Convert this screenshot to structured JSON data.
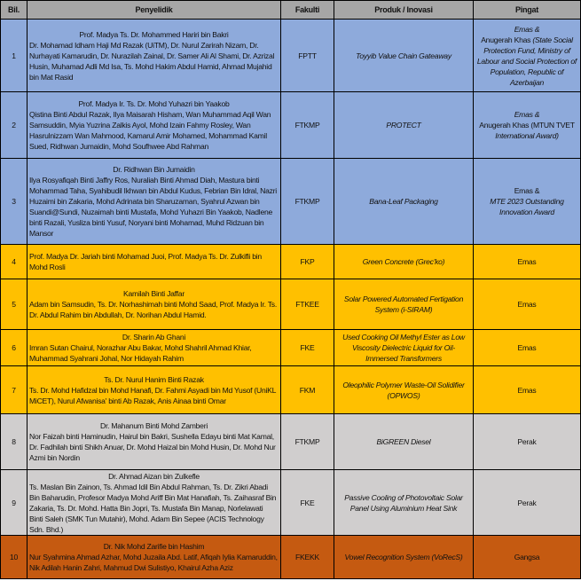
{
  "headers": [
    "Bil.",
    "Penyelidik",
    "Fakulti",
    "Produk / Inovasi",
    "Pingat"
  ],
  "colors": {
    "header": "#a6a6a6",
    "blue": "#8eaadb",
    "yellow": "#ffc000",
    "gray": "#d0cece",
    "orange": "#c55a11"
  },
  "rows": [
    {
      "no": "1",
      "color": "blue",
      "lead": "Prof. Madya Ts. Dr. Mohammed Hariri bin Bakri",
      "members": "Dr. Mohamad Idham Haji Md Razak (UiTM), Dr. Nurul Zarirah Nizam, Dr. Nurhayati Kamarudin, Dr. Nurazilah Zainal, Dr. Samer Ali Al Shami, Dr. Azrizal Husin, Muhamad Adli Md Isa, Ts. Mohd Hakim Abdul Hamid, Ahmad Mujahid bin Mat Rasid",
      "faculty": "FPTT",
      "product": "Toyyib Value Chain Gateaway",
      "award": [
        {
          "t": "Emas &",
          "i": true,
          "br": true
        },
        {
          "t": "Anugerah Khas ",
          "i": false
        },
        {
          "t": "(State Social Protection Fund, Ministry of Labour and Social Protection of Population, Republic of Azerbaijan",
          "i": true
        }
      ]
    },
    {
      "no": "2",
      "color": "blue",
      "lead": "Prof. Madya Ir. Ts. Dr. Mohd Yuhazri bin Yaakob",
      "members": "Qistina Binti Abdul Razak, Ilya Maisarah Hisham, Wan Muhammad Aqil Wan Samsuddin, Myia Yuzrina Zalkis Ayol, Mohd Izain Fahmy Rosley, Wan Hasrulnizzam Wan Mahmood, Kamarul Amir Mohamed, Mohammad Kamil Sued, Ridhwan Jumaidin, Mohd Soufhwee Abd Rahman",
      "faculty": "FTKMP",
      "product": "PROTECT",
      "award": [
        {
          "t": "Emas &",
          "i": true,
          "br": true
        },
        {
          "t": "Anugerah Khas (MTUN TVET ",
          "i": false
        },
        {
          "t": "International Award)",
          "i": true
        }
      ]
    },
    {
      "no": "3",
      "color": "blue",
      "lead": "Dr. Ridhwan Bin Jumaidin",
      "members": "Ilya Rosyafiqah Binti Jaffry Ros, Nuraliah Binti Ahmad Diah, Mastura binti Mohammad Taha, Syahibudil Ikhwan bin Abdul Kudus, Febrian Bin Idral, Nazri Huzaimi bin Zakaria, Mohd Adrinata bin Sharuzaman, Syahrul Azwan bin Suandi@Sundi, Nuzaimah binti Mustafa, Mohd Yuhazri Bin Yaakob, Nadlene binti Razali, Yusliza binti Yusuf, Noryani binti Mohamad, Muhd Ridzuan bin Mansor",
      "faculty": "FTKMP",
      "product": "Bana-Leaf Packaging",
      "award": [
        {
          "t": "Emas &",
          "i": false,
          "br": true
        },
        {
          "t": "MTE 2023 Outstanding Innovation Award",
          "i": true
        }
      ]
    },
    {
      "no": "4",
      "color": "yellow",
      "lead": "",
      "members": "Prof. Madya Dr. Jariah binti Mohamad Juoi, Prof. Madya Ts. Dr. Zulkifli bin Mohd Rosli",
      "faculty": "FKP",
      "product": "Green Concrete (Grec'ko)",
      "award": [
        {
          "t": "Emas",
          "i": false
        }
      ]
    },
    {
      "no": "5",
      "color": "yellow",
      "lead": "Kamilah Binti Jaffar",
      "members": "Adam bin Samsudin, Ts. Dr. Norhashimah binti Mohd Saad, Prof. Madya Ir. Ts. Dr. Abdul Rahim bin Abdullah, Dr. Norihan Abdul Hamid.",
      "faculty": "FTKEE",
      "product": "Solar Powered Automated Fertigation System (i-SIRAM)",
      "award": [
        {
          "t": "Emas",
          "i": false
        }
      ]
    },
    {
      "no": "6",
      "color": "yellow",
      "lead": "Dr. Sharin Ab Ghani",
      "members": "Imran Sutan Chairul, Norazhar Abu Bakar, Mohd Shahril Ahmad Khiar, Muhammad Syahrani Johal, Nor Hidayah Rahim",
      "faculty": "FKE",
      "product": "Used Cooking Oil Methyl Ester as Low Viscosity Dielectric Liquid for Oil-Immersed Transformers",
      "award": [
        {
          "t": "Emas",
          "i": false
        }
      ]
    },
    {
      "no": "7",
      "color": "yellow",
      "lead": "Ts. Dr. Nurul Hanim Binti Razak",
      "members": "Ts. Dr. Mohd Hafidzal bin Mohd Hanafi, Dr. Fahmi Asyadi bin Md Yusof (UniKL MiCET), Nurul Afwanisa' binti Ab Razak, Anis Ainaa binti Omar",
      "faculty": "FKM",
      "product": "Oleophilic Polymer Waste-Oil Solidifier (OPWOS)",
      "award": [
        {
          "t": "Emas",
          "i": false
        }
      ]
    },
    {
      "no": "8",
      "color": "gray",
      "lead": "Dr. Mahanum Binti Mohd Zamberi",
      "members": "Nor Faizah binti Haminudin, Hairul bin Bakri, Sushella Edayu binti Mat Kamal, Dr. Fadhilah binti Shikh Anuar, Dr. Mohd Haizal bin Mohd Husin, Dr. Mohd Nur Azmi bin Nordin",
      "faculty": "FTKMP",
      "product": "BiGREEN Diesel",
      "award": [
        {
          "t": "Perak",
          "i": false
        }
      ]
    },
    {
      "no": "9",
      "color": "gray",
      "lead": "Dr. Ahmad Aizan bin Zulkefle",
      "members": "Ts. Maslan Bin Zainon, Ts. Ahmad Idil Bin Abdul Rahman, Ts. Dr. Zikri Abadi Bin Baharudin, Profesor Madya Mohd Ariff Bin Mat Hanafiah, Ts. Zaihasraf Bin Zakaria, Ts. Dr. Mohd. Hatta Bin Jopri, Ts. Mustafa Bin Manap, Norlelawati Binti Saleh (SMK Tun Mutahir), Mohd. Adam Bin Sepee (ACIS Technology Sdn. Bhd.)",
      "faculty": "FKE",
      "product": "Passive Cooling of Photovoltaic Solar Panel Using Aluminium Heat Sink",
      "award": [
        {
          "t": "Perak",
          "i": false
        }
      ]
    },
    {
      "no": "10",
      "color": "orange",
      "lead": "Dr. Nik Mohd Zarifie bin Hashim",
      "members": "Nur Syahmina Ahmad Azhar, Mohd Juzaila Abd. Latif, Afiqah Iylia Kamaruddin, Nik Adilah Hanin Zahri, Mahmud Dwi Sulistiyo, Khairul Azha Aziz",
      "faculty": "FKEKK",
      "product": "Vowel Recognition System (VoRecS)",
      "award": [
        {
          "t": "Gangsa",
          "i": false
        }
      ]
    }
  ]
}
